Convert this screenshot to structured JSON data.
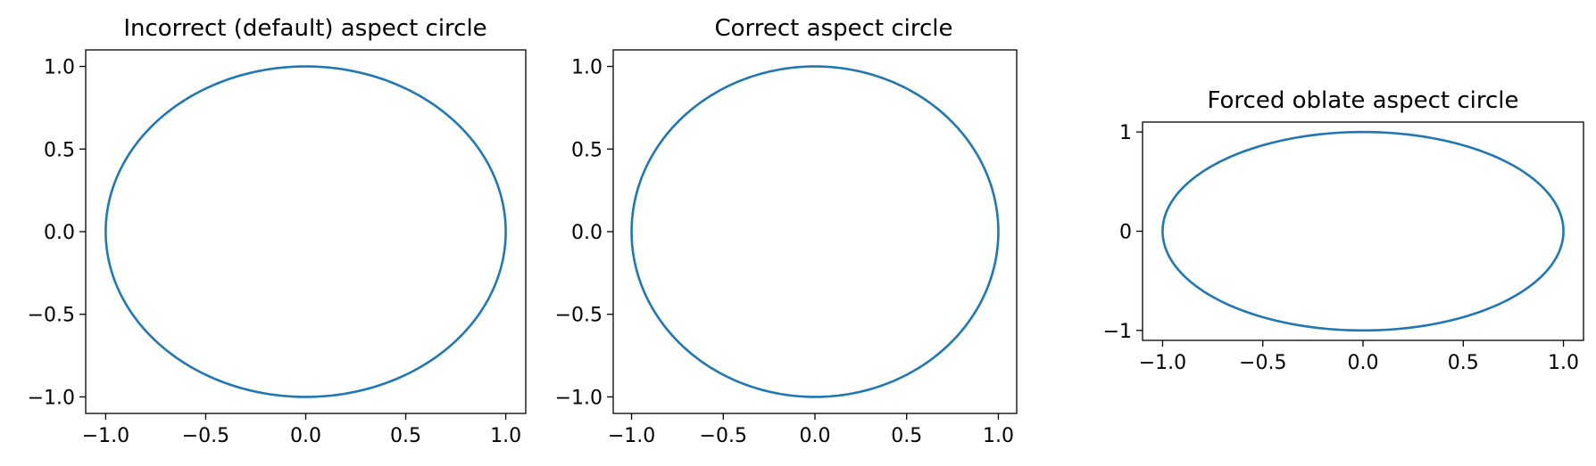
{
  "chart_data": [
    {
      "type": "line",
      "title": "Incorrect (default) aspect circle",
      "xlabel": "",
      "ylabel": "",
      "xlim": [
        -1.1,
        1.1
      ],
      "ylim": [
        -1.1,
        1.1
      ],
      "xticks": [
        -1.0,
        -0.5,
        0.0,
        0.5,
        1.0
      ],
      "xtick_labels": [
        "−1.0",
        "−0.5",
        "0.0",
        "0.5",
        "1.0"
      ],
      "yticks": [
        -1.0,
        -0.5,
        0.0,
        0.5,
        1.0
      ],
      "ytick_labels": [
        "−1.0",
        "−0.5",
        "0.0",
        "0.5",
        "1.0"
      ],
      "grid": false,
      "series": [
        {
          "color": "#1f77b4",
          "shape": "unit circle",
          "center": [
            0,
            0
          ],
          "radius": 1.0,
          "x": [
            1.0,
            0.866,
            0.5,
            0.0,
            -0.5,
            -0.866,
            -1.0,
            -0.866,
            -0.5,
            0.0,
            0.5,
            0.866,
            1.0
          ],
          "y": [
            0.0,
            0.5,
            0.866,
            1.0,
            0.866,
            0.5,
            0.0,
            -0.5,
            -0.866,
            -1.0,
            -0.866,
            -0.5,
            0.0
          ]
        }
      ]
    },
    {
      "type": "line",
      "title": "Correct aspect circle",
      "xlabel": "",
      "ylabel": "",
      "xlim": [
        -1.1,
        1.1
      ],
      "ylim": [
        -1.1,
        1.1
      ],
      "xticks": [
        -1.0,
        -0.5,
        0.0,
        0.5,
        1.0
      ],
      "xtick_labels": [
        "−1.0",
        "−0.5",
        "0.0",
        "0.5",
        "1.0"
      ],
      "yticks": [
        -1.0,
        -0.5,
        0.0,
        0.5,
        1.0
      ],
      "ytick_labels": [
        "−1.0",
        "−0.5",
        "0.0",
        "0.5",
        "1.0"
      ],
      "grid": false,
      "series": [
        {
          "color": "#1f77b4",
          "shape": "unit circle",
          "center": [
            0,
            0
          ],
          "radius": 1.0,
          "x": [
            1.0,
            0.866,
            0.5,
            0.0,
            -0.5,
            -0.866,
            -1.0,
            -0.866,
            -0.5,
            0.0,
            0.5,
            0.866,
            1.0
          ],
          "y": [
            0.0,
            0.5,
            0.866,
            1.0,
            0.866,
            0.5,
            0.0,
            -0.5,
            -0.866,
            -1.0,
            -0.866,
            -0.5,
            0.0
          ]
        }
      ]
    },
    {
      "type": "line",
      "title": "Forced oblate aspect circle",
      "xlabel": "",
      "ylabel": "",
      "xlim": [
        -1.1,
        1.1
      ],
      "ylim": [
        -1.1,
        1.1
      ],
      "xticks": [
        -1.0,
        -0.5,
        0.0,
        0.5,
        1.0
      ],
      "xtick_labels": [
        "−1.0",
        "−0.5",
        "0.0",
        "0.5",
        "1.0"
      ],
      "yticks": [
        -1,
        0,
        1
      ],
      "ytick_labels": [
        "−1",
        "0",
        "1"
      ],
      "grid": false,
      "series": [
        {
          "color": "#1f77b4",
          "shape": "unit circle",
          "center": [
            0,
            0
          ],
          "radius": 1.0,
          "x": [
            1.0,
            0.866,
            0.5,
            0.0,
            -0.5,
            -0.866,
            -1.0,
            -0.866,
            -0.5,
            0.0,
            0.5,
            0.866,
            1.0
          ],
          "y": [
            0.0,
            0.5,
            0.866,
            1.0,
            0.866,
            0.5,
            0.0,
            -0.5,
            -0.866,
            -1.0,
            -0.866,
            -0.5,
            0.0
          ]
        }
      ]
    }
  ]
}
